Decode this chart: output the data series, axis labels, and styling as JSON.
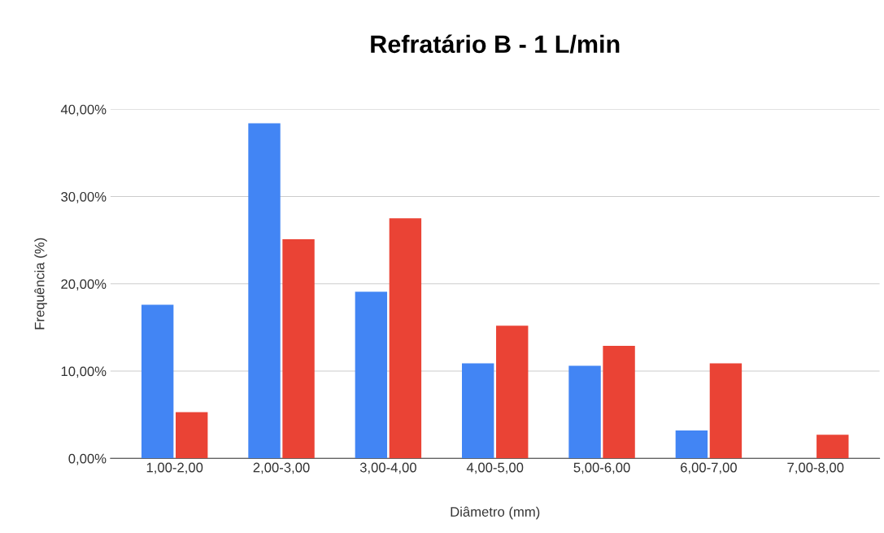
{
  "chart_data": {
    "type": "bar",
    "title": "Refratário B - 1 L/min",
    "xlabel": "Diâmetro (mm)",
    "ylabel": "Frequência (%)",
    "categories": [
      "1,00-2,00",
      "2,00-3,00",
      "3,00-4,00",
      "4,00-5,00",
      "5,00-6,00",
      "6,00-7,00",
      "7,00-8,00"
    ],
    "series": [
      {
        "color": "#4285f4",
        "values": [
          17.6,
          38.4,
          19.1,
          10.9,
          10.6,
          3.2,
          0
        ]
      },
      {
        "color": "#ea4335",
        "values": [
          5.3,
          25.1,
          27.5,
          15.2,
          12.9,
          10.9,
          2.7
        ]
      }
    ],
    "ylim": [
      0,
      40
    ],
    "yticks": [
      {
        "value": 0,
        "label": "0,00%"
      },
      {
        "value": 10,
        "label": "10,00%"
      },
      {
        "value": 20,
        "label": "20,00%"
      },
      {
        "value": 30,
        "label": "30,00%"
      },
      {
        "value": 40,
        "label": "40,00%"
      }
    ],
    "grid": "y"
  }
}
